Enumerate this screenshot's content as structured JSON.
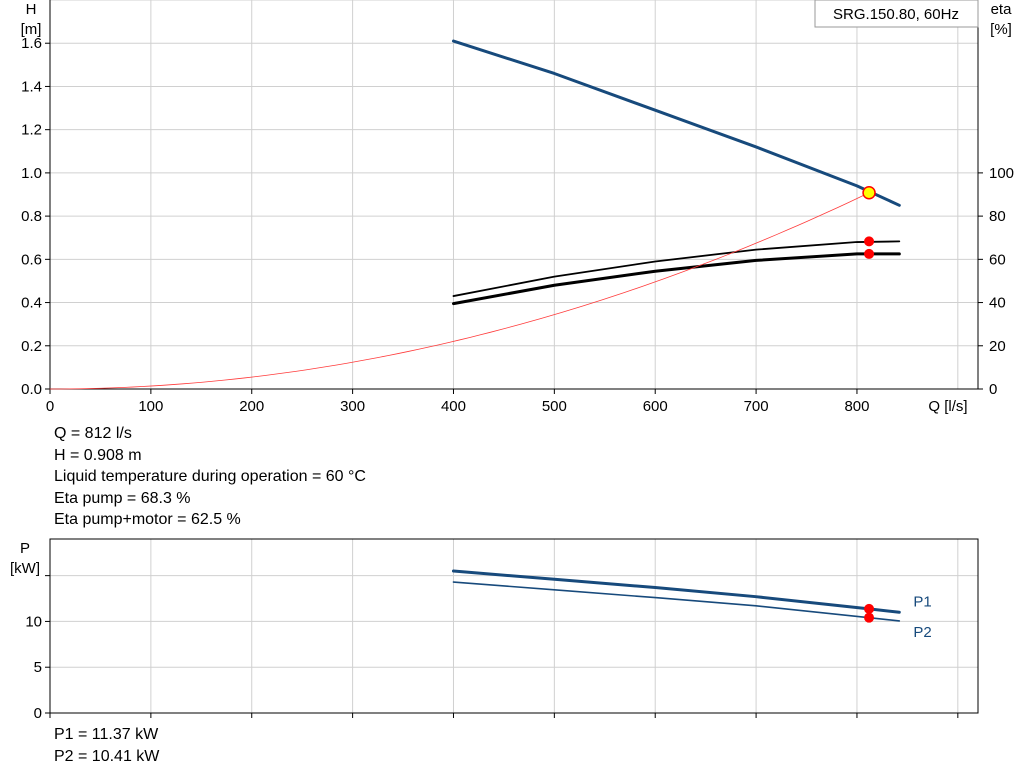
{
  "chart_data": [
    {
      "type": "line",
      "title": "SRG.150.80, 60Hz",
      "xlabel": "Q [l/s]",
      "ylabel_left": [
        "H",
        "[m]"
      ],
      "ylabel_right": [
        "eta",
        "[%]"
      ],
      "xlim": [
        0,
        920
      ],
      "ylim_left": [
        0,
        1.8
      ],
      "ylim_right": [
        0,
        180
      ],
      "xticks": [
        0,
        100,
        200,
        300,
        400,
        500,
        600,
        700,
        800
      ],
      "xtick_labels": [
        "0",
        "100",
        "200",
        "300",
        "400",
        "500",
        "600",
        "700",
        "800"
      ],
      "yticks_left": [
        0,
        0.2,
        0.4,
        0.6,
        0.8,
        1.0,
        1.2,
        1.4,
        1.6
      ],
      "ytick_labels_left": [
        "0.0",
        "0.2",
        "0.4",
        "0.6",
        "0.8",
        "1.0",
        "1.2",
        "1.4",
        "1.6"
      ],
      "yticks_right": [
        0,
        20,
        40,
        60,
        80,
        100
      ],
      "ytick_labels_right": [
        "0",
        "20",
        "40",
        "60",
        "80",
        "100"
      ],
      "grid": true,
      "series": [
        {
          "axis": "left",
          "color": "#174a7c",
          "width": 3,
          "x": [
            400,
            500,
            600,
            700,
            800,
            842
          ],
          "y": [
            1.61,
            1.46,
            1.29,
            1.12,
            0.94,
            0.85
          ]
        },
        {
          "axis": "right",
          "color": "#000000",
          "width": 1.8,
          "x": [
            400,
            500,
            600,
            700,
            800,
            842
          ],
          "y": [
            43,
            52,
            59,
            64.5,
            68,
            68.3
          ]
        },
        {
          "axis": "right",
          "color": "#000000",
          "width": 3,
          "x": [
            400,
            500,
            600,
            700,
            800,
            842
          ],
          "y": [
            39.5,
            48,
            54.5,
            59.5,
            62.5,
            62.5
          ]
        },
        {
          "axis": "left",
          "color": "#ff3b3b",
          "width": 0.8,
          "curve": "system",
          "x": [
            0,
            100,
            200,
            300,
            400,
            500,
            600,
            700,
            812
          ],
          "y": [
            0,
            0.0138,
            0.0551,
            0.124,
            0.2203,
            0.3442,
            0.4957,
            0.6747,
            0.908
          ]
        }
      ],
      "duty_point": {
        "x": 812,
        "y": 0.908,
        "color": "#ffff00",
        "stroke": "#ff0000"
      },
      "markers": [
        {
          "axis": "right",
          "x": 812,
          "y": 68.3,
          "color": "#ff0000"
        },
        {
          "axis": "right",
          "x": 812,
          "y": 62.5,
          "color": "#ff0000"
        }
      ]
    },
    {
      "type": "line",
      "xlabel": "",
      "ylabel_left": [
        "P",
        "[kW]"
      ],
      "xlim": [
        0,
        920
      ],
      "ylim": [
        0,
        19
      ],
      "xticks": [
        0,
        100,
        200,
        300,
        400,
        500,
        600,
        700,
        800
      ],
      "yticks": [
        0,
        5,
        10,
        15
      ],
      "ytick_labels": [
        "0",
        "5",
        "10",
        ""
      ],
      "grid": true,
      "series": [
        {
          "name": "P1",
          "color": "#174a7c",
          "width": 3,
          "x": [
            400,
            500,
            600,
            700,
            812,
            842
          ],
          "y": [
            15.5,
            14.6,
            13.7,
            12.7,
            11.37,
            11.0
          ]
        },
        {
          "name": "P2",
          "color": "#174a7c",
          "width": 1.6,
          "x": [
            400,
            500,
            600,
            700,
            812,
            842
          ],
          "y": [
            14.3,
            13.45,
            12.6,
            11.7,
            10.41,
            10.05
          ]
        }
      ],
      "markers": [
        {
          "x": 812,
          "y": 11.37,
          "color": "#ff0000"
        },
        {
          "x": 812,
          "y": 10.41,
          "color": "#ff0000"
        }
      ]
    }
  ],
  "info_top": [
    "Q = 812 l/s",
    "H = 0.908 m",
    "Liquid temperature during operation = 60 °C",
    "Eta pump = 68.3 %",
    "Eta pump+motor = 62.5 %"
  ],
  "info_bottom": [
    "P1 = 11.37 kW",
    "P2 = 10.41 kW"
  ]
}
